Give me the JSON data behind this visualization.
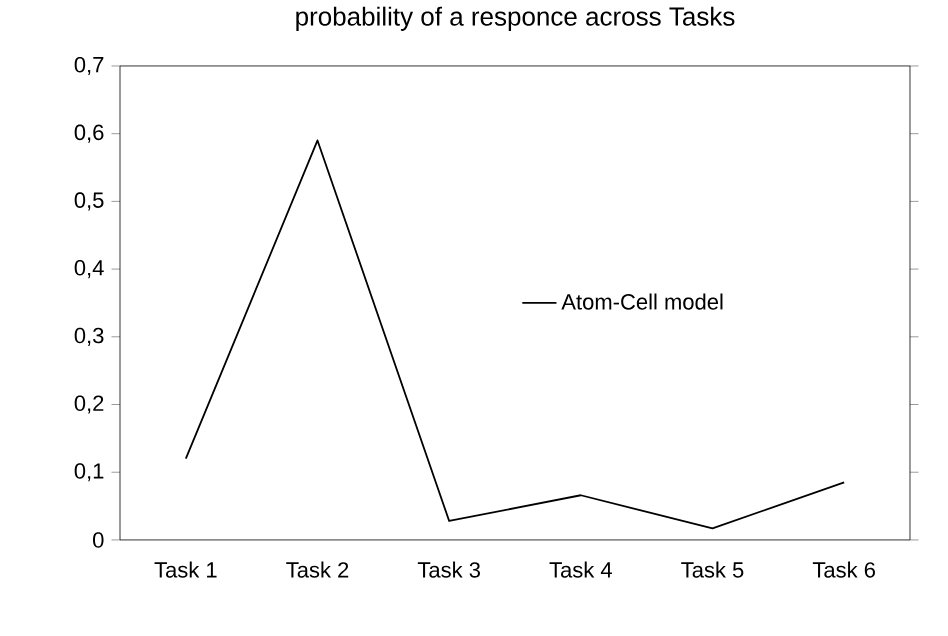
{
  "chart_data": {
    "type": "line",
    "title": "probability  of a responce across Tasks",
    "categories": [
      "Task 1",
      "Task 2",
      "Task 3",
      "Task 4",
      "Task 5",
      "Task 6"
    ],
    "series": [
      {
        "name": "Atom-Cell model",
        "color": "#000000",
        "values": [
          0.12,
          0.59,
          0.028,
          0.066,
          0.017,
          0.085
        ]
      }
    ],
    "ylim": [
      0,
      0.7
    ],
    "yticks": [
      0,
      {
        "value": 0.1,
        "label": "0,1"
      },
      {
        "value": 0.2,
        "label": "0,2"
      },
      {
        "value": 0.3,
        "label": "0,3"
      },
      {
        "value": 0.4,
        "label": "0,4"
      },
      {
        "value": 0.5,
        "label": "0,5"
      },
      {
        "value": 0.6,
        "label": "0,6"
      },
      {
        "value": 0.7,
        "label": "0,7"
      }
    ],
    "grid": false,
    "legend": "right",
    "marker": "none",
    "line_style": "solid"
  }
}
